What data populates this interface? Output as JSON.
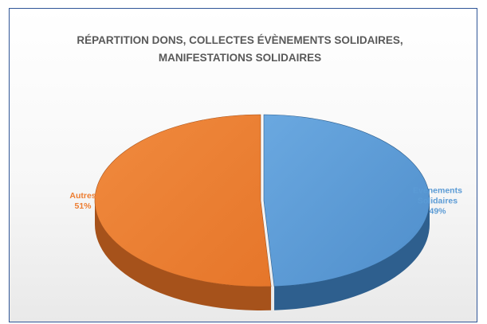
{
  "chart_data": {
    "type": "pie",
    "title_lines": [
      "RÉPARTITION DONS, COLLECTES ÉVÈNEMENTS SOLIDAIRES,",
      "MANIFESTATIONS SOLIDAIRES"
    ],
    "slices": [
      {
        "label_lines": [
          "Evènements",
          "Solidaires"
        ],
        "value": 49,
        "value_label": "49%",
        "color": "#5b9bd5",
        "side_color": "#2e5f8e",
        "exploded": true
      },
      {
        "label_lines": [
          "Autres"
        ],
        "value": 51,
        "value_label": "51%",
        "color": "#ed7d31",
        "side_color": "#a6521b",
        "exploded": false
      }
    ],
    "style": "3d",
    "legend": "none"
  }
}
